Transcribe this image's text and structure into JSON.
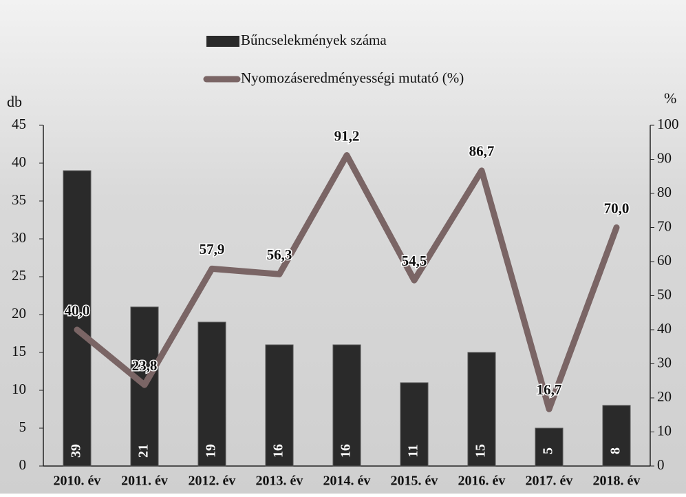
{
  "chart_data": {
    "type": "bar",
    "categories": [
      "2010. év",
      "2011. év",
      "2012. év",
      "2013. év",
      "2014. év",
      "2015. év",
      "2016. év",
      "2017. év",
      "2018. év"
    ],
    "ylabel": "db",
    "y2label": "%",
    "series": [
      {
        "name": "Bűncselekmények száma",
        "type": "bar",
        "color": "#2a2a2a",
        "values": [
          39,
          21,
          19,
          16,
          16,
          11,
          15,
          5,
          8
        ]
      },
      {
        "name": "Nyomozáseredményességi mutató (%)",
        "type": "line",
        "axis": "y2",
        "color": "#7a6565",
        "values": [
          40.0,
          23.8,
          57.9,
          56.3,
          91.2,
          54.5,
          86.7,
          16.7,
          70.0
        ],
        "value_labels": [
          "40,0",
          "23,8",
          "57,9",
          "56,3",
          "91,2",
          "54,5",
          "86,7",
          "16,7",
          "70,0"
        ]
      }
    ],
    "ylim": [
      0,
      45
    ],
    "yticks": [
      0,
      5,
      10,
      15,
      20,
      25,
      30,
      35,
      40,
      45
    ],
    "y2lim": [
      0,
      100
    ],
    "y2ticks": [
      0,
      10,
      20,
      30,
      40,
      50,
      60,
      70,
      80,
      90,
      100
    ]
  }
}
